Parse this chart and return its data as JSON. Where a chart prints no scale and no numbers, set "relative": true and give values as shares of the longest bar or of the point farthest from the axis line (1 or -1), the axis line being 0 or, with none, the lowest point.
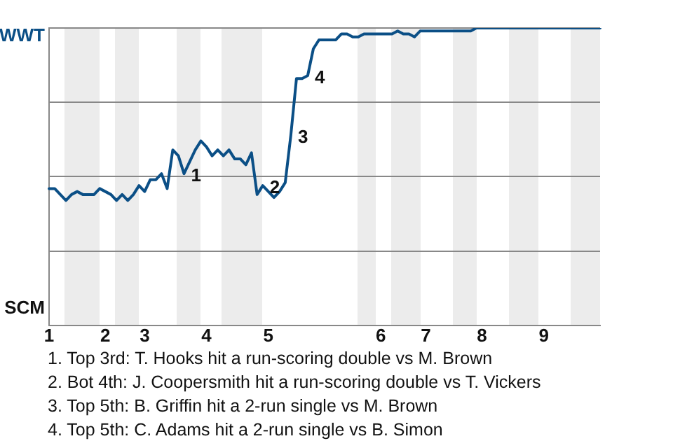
{
  "chart_data": {
    "type": "line",
    "relative": true,
    "categories": [
      "1",
      null,
      null,
      null,
      null,
      null,
      null,
      null,
      null,
      null,
      "2",
      null,
      null,
      null,
      null,
      null,
      null,
      "3",
      null,
      null,
      null,
      null,
      null,
      null,
      null,
      null,
      null,
      null,
      "4",
      null,
      null,
      null,
      null,
      null,
      null,
      null,
      null,
      null,
      null,
      "5",
      null,
      null,
      null,
      null,
      null,
      null,
      null,
      null,
      null,
      null,
      null,
      null,
      null,
      null,
      null,
      null,
      null,
      null,
      null,
      "6",
      null,
      null,
      null,
      null,
      null,
      null,
      null,
      "7",
      null,
      null,
      null,
      null,
      null,
      null,
      null,
      null,
      null,
      "8",
      null,
      null,
      null,
      null,
      null,
      null,
      null,
      null,
      null,
      null,
      "9",
      null,
      null,
      null,
      null,
      null,
      null,
      null,
      null,
      null,
      null
    ],
    "series": [
      {
        "color": "#0b4f86",
        "values": [
          0.46,
          0.46,
          0.44,
          0.42,
          0.44,
          0.45,
          0.44,
          0.44,
          0.44,
          0.46,
          0.45,
          0.44,
          0.42,
          0.44,
          0.42,
          0.44,
          0.47,
          0.45,
          0.49,
          0.49,
          0.51,
          0.46,
          0.59,
          0.57,
          0.51,
          0.55,
          0.59,
          0.62,
          0.6,
          0.57,
          0.59,
          0.57,
          0.59,
          0.56,
          0.56,
          0.54,
          0.58,
          0.44,
          0.47,
          0.45,
          0.43,
          0.45,
          0.48,
          0.64,
          0.83,
          0.83,
          0.84,
          0.93,
          0.96,
          0.96,
          0.96,
          0.96,
          0.98,
          0.98,
          0.97,
          0.97,
          0.98,
          0.98,
          0.98,
          0.98,
          0.98,
          0.98,
          0.99,
          0.98,
          0.98,
          0.97,
          0.99,
          0.99,
          0.99,
          0.99,
          0.99,
          0.99,
          0.99,
          0.99,
          0.99,
          0.99,
          1.0,
          1.0,
          1.0,
          1.0,
          1.0,
          1.0,
          1.0,
          1.0,
          1.0,
          1.0,
          1.0,
          1.0,
          1.0,
          1.0,
          1.0,
          1.0,
          1.0,
          1.0,
          1.0,
          1.0,
          1.0,
          1.0,
          1.0
        ]
      }
    ],
    "grid": "y",
    "legend": false,
    "marker": "none",
    "line_style": "solid",
    "annotations": [
      "WWT",
      "SCM",
      "1",
      "2",
      "3",
      "4",
      "1. Top 3rd: T. Hooks hit a run-scoring double vs M. Brown",
      "2. Bot 4th: J. Coopersmith hit a run-scoring double vs T. Vickers",
      "3. Top 5th: B. Griffin hit a 2-run single vs M. Brown",
      "4. Top 5th: C. Adams hit a 2-run single vs B. Simon"
    ]
  }
}
